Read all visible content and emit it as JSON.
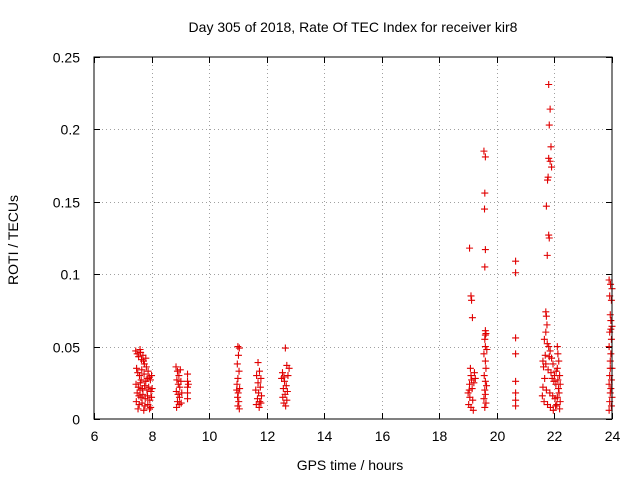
{
  "chart_data": {
    "type": "scatter",
    "title": "Day 305 of 2018, Rate Of TEC Index for receiver kir8",
    "xlabel": "GPS time / hours",
    "ylabel": "ROTI / TECUs",
    "xlim": [
      6,
      24
    ],
    "ylim": [
      0,
      0.25
    ],
    "x_ticks": [
      6,
      8,
      10,
      12,
      14,
      16,
      18,
      20,
      22,
      24
    ],
    "x_tick_labels": [
      "6",
      "8",
      "10",
      "12",
      "14",
      "16",
      "18",
      "20",
      "22",
      "24"
    ],
    "y_ticks": [
      0,
      0.05,
      0.1,
      0.15,
      0.2,
      0.25
    ],
    "y_tick_labels": [
      "0",
      "0.05",
      "0.1",
      "0.15",
      "0.2",
      "0.25"
    ],
    "grid": true,
    "marker": "+",
    "marker_color": "#e00000",
    "series": [
      {
        "name": "ROTI",
        "points": [
          [
            7.45,
            0.047
          ],
          [
            7.5,
            0.045
          ],
          [
            7.55,
            0.043
          ],
          [
            7.6,
            0.048
          ],
          [
            7.62,
            0.046
          ],
          [
            7.65,
            0.041
          ],
          [
            7.7,
            0.044
          ],
          [
            7.72,
            0.04
          ],
          [
            7.75,
            0.038
          ],
          [
            7.8,
            0.042
          ],
          [
            7.48,
            0.035
          ],
          [
            7.52,
            0.032
          ],
          [
            7.58,
            0.03
          ],
          [
            7.66,
            0.034
          ],
          [
            7.74,
            0.031
          ],
          [
            7.82,
            0.036
          ],
          [
            7.88,
            0.033
          ],
          [
            7.92,
            0.029
          ],
          [
            7.96,
            0.027
          ],
          [
            8.0,
            0.03
          ],
          [
            7.46,
            0.024
          ],
          [
            7.54,
            0.022
          ],
          [
            7.61,
            0.025
          ],
          [
            7.68,
            0.021
          ],
          [
            7.76,
            0.023
          ],
          [
            7.84,
            0.02
          ],
          [
            7.9,
            0.022
          ],
          [
            7.98,
            0.019
          ],
          [
            8.02,
            0.021
          ],
          [
            7.5,
            0.018
          ],
          [
            7.56,
            0.016
          ],
          [
            7.63,
            0.015
          ],
          [
            7.7,
            0.017
          ],
          [
            7.78,
            0.014
          ],
          [
            7.86,
            0.016
          ],
          [
            7.94,
            0.013
          ],
          [
            8.0,
            0.015
          ],
          [
            7.47,
            0.012
          ],
          [
            7.57,
            0.01
          ],
          [
            7.67,
            0.011
          ],
          [
            7.77,
            0.009
          ],
          [
            7.87,
            0.01
          ],
          [
            7.97,
            0.008
          ],
          [
            7.53,
            0.007
          ],
          [
            7.73,
            0.006
          ],
          [
            7.93,
            0.007
          ],
          [
            7.6,
            0.02
          ],
          [
            7.8,
            0.026
          ],
          [
            7.85,
            0.028
          ],
          [
            7.64,
            0.027
          ],
          [
            8.85,
            0.036
          ],
          [
            8.9,
            0.033
          ],
          [
            8.95,
            0.03
          ],
          [
            9.0,
            0.034
          ],
          [
            8.88,
            0.027
          ],
          [
            8.93,
            0.024
          ],
          [
            8.98,
            0.022
          ],
          [
            9.02,
            0.026
          ],
          [
            8.86,
            0.019
          ],
          [
            8.92,
            0.017
          ],
          [
            8.97,
            0.015
          ],
          [
            9.05,
            0.018
          ],
          [
            8.9,
            0.012
          ],
          [
            8.96,
            0.01
          ],
          [
            9.03,
            0.011
          ],
          [
            8.87,
            0.008
          ],
          [
            9.25,
            0.031
          ],
          [
            9.25,
            0.026
          ],
          [
            9.25,
            0.022
          ],
          [
            9.25,
            0.018
          ],
          [
            9.25,
            0.014
          ],
          [
            9.28,
            0.024
          ],
          [
            11.0,
            0.05
          ],
          [
            11.05,
            0.049
          ],
          [
            11.02,
            0.044
          ],
          [
            10.98,
            0.038
          ],
          [
            11.04,
            0.033
          ],
          [
            11.0,
            0.028
          ],
          [
            10.97,
            0.024
          ],
          [
            11.06,
            0.021
          ],
          [
            11.01,
            0.018
          ],
          [
            10.99,
            0.015
          ],
          [
            11.03,
            0.012
          ],
          [
            11.0,
            0.009
          ],
          [
            11.05,
            0.007
          ],
          [
            10.96,
            0.02
          ],
          [
            11.7,
            0.039
          ],
          [
            11.75,
            0.033
          ],
          [
            11.65,
            0.03
          ],
          [
            11.8,
            0.028
          ],
          [
            11.7,
            0.025
          ],
          [
            11.78,
            0.022
          ],
          [
            11.62,
            0.02
          ],
          [
            11.72,
            0.018
          ],
          [
            11.82,
            0.016
          ],
          [
            11.68,
            0.014
          ],
          [
            11.76,
            0.012
          ],
          [
            11.64,
            0.01
          ],
          [
            11.74,
            0.008
          ],
          [
            11.8,
            0.011
          ],
          [
            12.55,
            0.032
          ],
          [
            12.6,
            0.029
          ],
          [
            12.65,
            0.049
          ],
          [
            12.7,
            0.037
          ],
          [
            12.62,
            0.026
          ],
          [
            12.68,
            0.023
          ],
          [
            12.58,
            0.021
          ],
          [
            12.72,
            0.019
          ],
          [
            12.64,
            0.017
          ],
          [
            12.56,
            0.015
          ],
          [
            12.7,
            0.013
          ],
          [
            12.6,
            0.011
          ],
          [
            12.66,
            0.009
          ],
          [
            12.74,
            0.03
          ],
          [
            12.52,
            0.028
          ],
          [
            12.78,
            0.035
          ],
          [
            19.05,
            0.118
          ],
          [
            19.1,
            0.085
          ],
          [
            19.12,
            0.082
          ],
          [
            19.15,
            0.07
          ],
          [
            19.08,
            0.035
          ],
          [
            19.1,
            0.03
          ],
          [
            19.12,
            0.027
          ],
          [
            19.05,
            0.024
          ],
          [
            19.14,
            0.021
          ],
          [
            19.0,
            0.018
          ],
          [
            19.06,
            0.015
          ],
          [
            19.16,
            0.013
          ],
          [
            19.02,
            0.01
          ],
          [
            19.1,
            0.008
          ],
          [
            19.18,
            0.006
          ],
          [
            19.2,
            0.025
          ],
          [
            19.22,
            0.032
          ],
          [
            19.25,
            0.028
          ],
          [
            19.04,
            0.02
          ],
          [
            19.55,
            0.185
          ],
          [
            19.6,
            0.181
          ],
          [
            19.58,
            0.156
          ],
          [
            19.57,
            0.145
          ],
          [
            19.6,
            0.117
          ],
          [
            19.58,
            0.105
          ],
          [
            19.6,
            0.061
          ],
          [
            19.62,
            0.059
          ],
          [
            19.58,
            0.055
          ],
          [
            19.6,
            0.05
          ],
          [
            19.55,
            0.045
          ],
          [
            19.6,
            0.04
          ],
          [
            19.62,
            0.035
          ],
          [
            19.56,
            0.03
          ],
          [
            19.6,
            0.026
          ],
          [
            19.64,
            0.023
          ],
          [
            19.58,
            0.02
          ],
          [
            19.6,
            0.017
          ],
          [
            19.55,
            0.014
          ],
          [
            19.62,
            0.011
          ],
          [
            19.58,
            0.008
          ],
          [
            19.6,
            0.058
          ],
          [
            19.65,
            0.048
          ],
          [
            20.65,
            0.109
          ],
          [
            20.65,
            0.101
          ],
          [
            20.65,
            0.056
          ],
          [
            20.65,
            0.045
          ],
          [
            20.65,
            0.026
          ],
          [
            20.65,
            0.018
          ],
          [
            20.65,
            0.013
          ],
          [
            20.65,
            0.009
          ],
          [
            21.8,
            0.231
          ],
          [
            21.85,
            0.214
          ],
          [
            21.82,
            0.203
          ],
          [
            21.88,
            0.188
          ],
          [
            21.8,
            0.18
          ],
          [
            21.85,
            0.178
          ],
          [
            21.9,
            0.174
          ],
          [
            21.78,
            0.167
          ],
          [
            21.76,
            0.165
          ],
          [
            21.72,
            0.147
          ],
          [
            21.8,
            0.127
          ],
          [
            21.82,
            0.125
          ],
          [
            21.75,
            0.113
          ],
          [
            21.7,
            0.074
          ],
          [
            21.72,
            0.071
          ],
          [
            21.74,
            0.065
          ],
          [
            21.7,
            0.06
          ],
          [
            21.65,
            0.055
          ],
          [
            21.75,
            0.052
          ],
          [
            21.8,
            0.05
          ],
          [
            21.85,
            0.047
          ],
          [
            21.68,
            0.044
          ],
          [
            21.9,
            0.042
          ],
          [
            21.6,
            0.04
          ],
          [
            21.95,
            0.038
          ],
          [
            21.62,
            0.036
          ],
          [
            21.78,
            0.034
          ],
          [
            21.88,
            0.032
          ],
          [
            22.0,
            0.03
          ],
          [
            21.66,
            0.028
          ],
          [
            21.98,
            0.026
          ],
          [
            22.05,
            0.024
          ],
          [
            21.6,
            0.022
          ],
          [
            21.72,
            0.02
          ],
          [
            21.84,
            0.018
          ],
          [
            21.94,
            0.016
          ],
          [
            22.02,
            0.014
          ],
          [
            21.64,
            0.012
          ],
          [
            21.76,
            0.01
          ],
          [
            21.86,
            0.008
          ],
          [
            21.96,
            0.006
          ],
          [
            22.04,
            0.009
          ],
          [
            22.1,
            0.05
          ],
          [
            22.12,
            0.045
          ],
          [
            22.15,
            0.04
          ],
          [
            22.1,
            0.035
          ],
          [
            22.18,
            0.03
          ],
          [
            22.12,
            0.027
          ],
          [
            22.2,
            0.024
          ],
          [
            22.14,
            0.021
          ],
          [
            22.16,
            0.018
          ],
          [
            22.1,
            0.015
          ],
          [
            22.2,
            0.012
          ],
          [
            22.08,
            0.01
          ],
          [
            22.18,
            0.007
          ],
          [
            21.7,
            0.038
          ],
          [
            21.92,
            0.028
          ],
          [
            22.06,
            0.033
          ],
          [
            21.58,
            0.016
          ],
          [
            21.82,
            0.043
          ],
          [
            23.9,
            0.096
          ],
          [
            23.95,
            0.093
          ],
          [
            24.0,
            0.09
          ],
          [
            23.92,
            0.085
          ],
          [
            23.98,
            0.082
          ],
          [
            23.94,
            0.072
          ],
          [
            23.96,
            0.068
          ],
          [
            24.0,
            0.064
          ],
          [
            23.92,
            0.06
          ],
          [
            23.98,
            0.055
          ],
          [
            23.9,
            0.05
          ],
          [
            23.96,
            0.045
          ],
          [
            23.94,
            0.04
          ],
          [
            24.0,
            0.035
          ],
          [
            23.92,
            0.03
          ],
          [
            23.98,
            0.027
          ],
          [
            23.9,
            0.024
          ],
          [
            23.96,
            0.021
          ],
          [
            23.94,
            0.018
          ],
          [
            24.0,
            0.015
          ],
          [
            23.92,
            0.012
          ],
          [
            23.98,
            0.009
          ],
          [
            23.9,
            0.006
          ],
          [
            23.96,
            0.062
          ],
          [
            23.94,
            0.035
          ]
        ]
      }
    ]
  }
}
